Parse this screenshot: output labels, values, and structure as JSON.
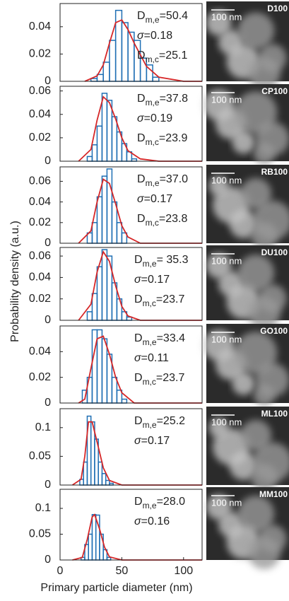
{
  "ylabel": "Probability density (a.u.)",
  "xlabel": "Primary particle diameter (nm)",
  "chart_data": [
    {
      "type": "histogram",
      "bins": [
        25,
        30,
        35,
        40,
        45,
        50,
        55,
        60,
        65,
        70,
        75,
        80
      ],
      "counts": [
        0.002,
        0.005,
        0.014,
        0.03,
        0.052,
        0.043,
        0.036,
        0.03,
        0.017,
        0.012,
        0.003
      ],
      "color": "#1f6fb4",
      "fit": {
        "color": "#d62728",
        "x": [
          20,
          30,
          35,
          40,
          45,
          50,
          55,
          60,
          70,
          80,
          100,
          115
        ],
        "values": [
          0,
          0.004,
          0.012,
          0.028,
          0.043,
          0.045,
          0.038,
          0.028,
          0.011,
          0.003,
          0,
          0
        ]
      },
      "xlim": [
        0,
        115
      ],
      "ylim": [
        0,
        0.057
      ],
      "yticks": [
        0,
        0.02,
        0.04
      ],
      "annotations": [
        {
          "main": "D",
          "sub": "m,e",
          "text": "=50.4"
        },
        {
          "main": "σ",
          "text": "=0.18"
        },
        {
          "main": "D",
          "sub": "m,c",
          "text": "=25.1"
        }
      ],
      "image_label": "D100",
      "scale_label": "100 nm"
    },
    {
      "type": "histogram",
      "bins": [
        22,
        26,
        30,
        34,
        38,
        42,
        46,
        50,
        54,
        58,
        62
      ],
      "counts": [
        0.004,
        0.014,
        0.03,
        0.058,
        0.052,
        0.038,
        0.025,
        0.015,
        0.008,
        0.002
      ],
      "color": "#1f6fb4",
      "fit": {
        "color": "#d62728",
        "x": [
          15,
          25,
          30,
          35,
          40,
          45,
          50,
          55,
          65,
          80,
          115
        ],
        "values": [
          0,
          0.01,
          0.035,
          0.055,
          0.05,
          0.036,
          0.02,
          0.009,
          0.002,
          0,
          0
        ]
      },
      "xlim": [
        0,
        115
      ],
      "ylim": [
        0,
        0.064
      ],
      "yticks": [
        0,
        0.02,
        0.04,
        0.06
      ],
      "annotations": [
        {
          "main": "D",
          "sub": "m,e",
          "text": "=37.8"
        },
        {
          "main": "σ",
          "text": "=0.19"
        },
        {
          "main": "D",
          "sub": "m,c",
          "text": "=23.9"
        }
      ],
      "image_label": "CP100",
      "scale_label": "100 nm"
    },
    {
      "type": "histogram",
      "bins": [
        22,
        26,
        30,
        34,
        38,
        42,
        46,
        50,
        54
      ],
      "counts": [
        0.01,
        0.02,
        0.045,
        0.065,
        0.072,
        0.04,
        0.02,
        0.01
      ],
      "color": "#1f6fb4",
      "fit": {
        "color": "#d62728",
        "x": [
          15,
          25,
          30,
          35,
          40,
          45,
          50,
          55,
          65,
          115
        ],
        "values": [
          0,
          0.012,
          0.04,
          0.062,
          0.058,
          0.038,
          0.017,
          0.006,
          0,
          0
        ]
      },
      "xlim": [
        0,
        115
      ],
      "ylim": [
        0,
        0.074
      ],
      "yticks": [
        0,
        0.02,
        0.04,
        0.06
      ],
      "annotations": [
        {
          "main": "D",
          "sub": "m,e",
          "text": "=37.0"
        },
        {
          "main": "σ",
          "text": "=0.17"
        },
        {
          "main": "D",
          "sub": "m,c",
          "text": "=23.8"
        }
      ],
      "image_label": "RB100",
      "scale_label": "100 nm"
    },
    {
      "type": "histogram",
      "bins": [
        22,
        26,
        30,
        34,
        38,
        42,
        46,
        50,
        54,
        58
      ],
      "counts": [
        0.008,
        0.025,
        0.05,
        0.066,
        0.06,
        0.035,
        0.02,
        0.008,
        0.003
      ],
      "color": "#1f6fb4",
      "fit": {
        "color": "#d62728",
        "x": [
          15,
          25,
          30,
          35,
          40,
          45,
          50,
          55,
          65,
          115
        ],
        "values": [
          0,
          0.015,
          0.045,
          0.064,
          0.055,
          0.032,
          0.013,
          0.004,
          0,
          0
        ]
      },
      "xlim": [
        0,
        115
      ],
      "ylim": [
        0,
        0.068
      ],
      "yticks": [
        0,
        0.02,
        0.04,
        0.06
      ],
      "annotations": [
        {
          "main": "D",
          "sub": "m,e",
          "text": "= 35.3"
        },
        {
          "main": "σ",
          "text": "=0.17"
        },
        {
          "main": "D",
          "sub": "m,c",
          "text": "=23.7"
        }
      ],
      "image_label": "DU100",
      "scale_label": "100 nm"
    },
    {
      "type": "histogram",
      "bins": [
        18,
        22,
        26,
        30,
        34,
        38,
        42,
        46,
        50,
        54
      ],
      "counts": [
        0.01,
        0.02,
        0.057,
        0.057,
        0.05,
        0.038,
        0.02,
        0.01,
        0.003
      ],
      "color": "#1f6fb4",
      "fit": {
        "color": "#d62728",
        "x": [
          15,
          20,
          25,
          30,
          35,
          40,
          45,
          50,
          60,
          115
        ],
        "values": [
          0,
          0.003,
          0.027,
          0.05,
          0.052,
          0.038,
          0.02,
          0.008,
          0,
          0
        ]
      },
      "xlim": [
        0,
        115
      ],
      "ylim": [
        0,
        0.06
      ],
      "yticks": [
        0,
        0.02,
        0.04
      ],
      "annotations": [
        {
          "main": "D",
          "sub": "m,e",
          "text": "=33.4"
        },
        {
          "main": "σ",
          "text": "=0.11"
        },
        {
          "main": "D",
          "sub": "m,c",
          "text": "=23.7"
        }
      ],
      "image_label": "GO100",
      "scale_label": "100 nm"
    },
    {
      "type": "histogram",
      "bins": [
        16,
        19,
        22,
        25,
        28,
        31,
        34,
        37,
        40,
        43
      ],
      "counts": [
        0.01,
        0.04,
        0.12,
        0.11,
        0.08,
        0.04,
        0.02,
        0.008,
        0.003
      ],
      "color": "#1f6fb4",
      "fit": {
        "color": "#d62728",
        "x": [
          10,
          17,
          20,
          23,
          26,
          30,
          35,
          40,
          50,
          115
        ],
        "values": [
          0,
          0.01,
          0.05,
          0.11,
          0.11,
          0.075,
          0.03,
          0.008,
          0,
          0
        ]
      },
      "xlim": [
        0,
        115
      ],
      "ylim": [
        0,
        0.133
      ],
      "yticks": [
        0,
        0.05,
        0.1
      ],
      "annotations": [
        {
          "main": "D",
          "sub": "m,e",
          "text": "=25.2"
        },
        {
          "main": "σ",
          "text": "=0.17"
        }
      ],
      "image_label": "ML100",
      "scale_label": "100 nm"
    },
    {
      "type": "histogram",
      "bins": [
        17,
        20,
        23,
        26,
        29,
        32,
        35,
        38,
        41
      ],
      "counts": [
        0.005,
        0.03,
        0.05,
        0.088,
        0.087,
        0.05,
        0.02,
        0.005
      ],
      "color": "#1f6fb4",
      "fit": {
        "color": "#d62728",
        "x": [
          10,
          18,
          22,
          26,
          28,
          32,
          36,
          40,
          50,
          115
        ],
        "values": [
          0,
          0.005,
          0.04,
          0.083,
          0.088,
          0.06,
          0.025,
          0.006,
          0,
          0
        ]
      },
      "xlim": [
        0,
        115
      ],
      "ylim": [
        0,
        0.137
      ],
      "yticks": [
        0,
        0.05,
        0.1
      ],
      "xticks": [
        0,
        50,
        100
      ],
      "annotations": [
        {
          "main": "D",
          "sub": "m,e",
          "text": "=28.0"
        },
        {
          "main": "σ",
          "text": "=0.16"
        }
      ],
      "image_label": "MM100",
      "scale_label": "100 nm"
    }
  ]
}
